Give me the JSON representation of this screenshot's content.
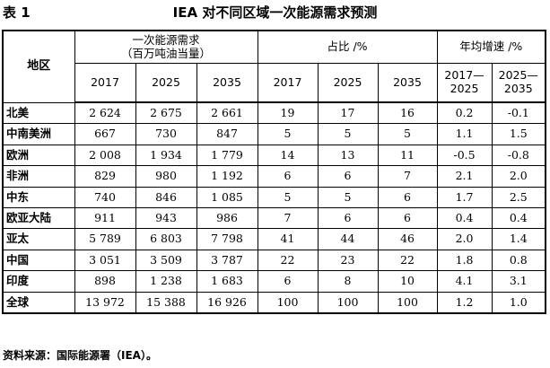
{
  "doc": {
    "label": "表 1",
    "title": "IEA 对不同区域一次能源需求预测",
    "note": "资料来源：国际能源署（IEA）。"
  },
  "table": {
    "region_header": "地区",
    "group_demand": "一次能源需求\n（百万吨油当量）",
    "group_share": "占比 /%",
    "group_growth": "年均增速 /%",
    "years": [
      "2017",
      "2025",
      "2035"
    ],
    "share_years": [
      "2017",
      "2025",
      "2035"
    ],
    "growth_periods": [
      "2017—\n2025",
      "2025—\n2035"
    ],
    "rows": [
      {
        "region": "北美",
        "d2017": "2 624",
        "d2025": "2 675",
        "d2035": "2 661",
        "s2017": "19",
        "s2025": "17",
        "s2035": "16",
        "g1": "0.2",
        "g2": "-0.1"
      },
      {
        "region": "中南美洲",
        "d2017": "667",
        "d2025": "730",
        "d2035": "847",
        "s2017": "5",
        "s2025": "5",
        "s2035": "5",
        "g1": "1.1",
        "g2": "1.5"
      },
      {
        "region": "欧洲",
        "d2017": "2 008",
        "d2025": "1 934",
        "d2035": "1 779",
        "s2017": "14",
        "s2025": "13",
        "s2035": "11",
        "g1": "-0.5",
        "g2": "-0.8"
      },
      {
        "region": "非洲",
        "d2017": "829",
        "d2025": "980",
        "d2035": "1 192",
        "s2017": "6",
        "s2025": "6",
        "s2035": "7",
        "g1": "2.1",
        "g2": "2.0"
      },
      {
        "region": "中东",
        "d2017": "740",
        "d2025": "846",
        "d2035": "1 085",
        "s2017": "5",
        "s2025": "5",
        "s2035": "6",
        "g1": "1.7",
        "g2": "2.5"
      },
      {
        "region": "欧亚大陆",
        "d2017": "911",
        "d2025": "943",
        "d2035": "986",
        "s2017": "7",
        "s2025": "6",
        "s2035": "6",
        "g1": "0.4",
        "g2": "0.4"
      },
      {
        "region": "亚太",
        "d2017": "5 789",
        "d2025": "6 803",
        "d2035": "7 798",
        "s2017": "41",
        "s2025": "44",
        "s2035": "46",
        "g1": "2.0",
        "g2": "1.4"
      },
      {
        "region": "中国",
        "d2017": "3 051",
        "d2025": "3 509",
        "d2035": "3 787",
        "s2017": "22",
        "s2025": "23",
        "s2035": "22",
        "g1": "1.8",
        "g2": "0.8"
      },
      {
        "region": "印度",
        "d2017": "898",
        "d2025": "1 238",
        "d2035": "1 683",
        "s2017": "6",
        "s2025": "8",
        "s2035": "10",
        "g1": "4.1",
        "g2": "3.1"
      },
      {
        "region": "全球",
        "d2017": "13 972",
        "d2025": "15 388",
        "d2035": "16 926",
        "s2017": "100",
        "s2025": "100",
        "s2035": "100",
        "g1": "1.2",
        "g2": "1.0"
      }
    ]
  }
}
